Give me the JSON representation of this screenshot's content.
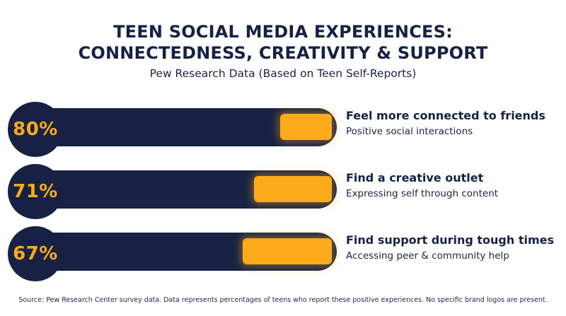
{
  "header": {
    "title_line1": "TEEN SOCIAL MEDIA EXPERIENCES:",
    "title_line2": "CONNECTEDNESS, CREATIVITY & SUPPORT",
    "subtitle": "Pew Research Data (Based on Teen Self-Reports)"
  },
  "colors": {
    "navy": "#162144",
    "accent": "#fbab1a",
    "background": "#ffffff"
  },
  "chart_data": {
    "type": "bar",
    "title": "TEEN SOCIAL MEDIA EXPERIENCES: CONNECTEDNESS, CREATIVITY & SUPPORT",
    "subtitle": "Pew Research Data (Based on Teen Self-Reports)",
    "unit": "%",
    "ylim": [
      0,
      100
    ],
    "categories": [
      "Feel more connected to friends",
      "Find a creative outlet",
      "Find support during tough times"
    ],
    "values": [
      80,
      71,
      67
    ],
    "items": [
      {
        "value": 80,
        "value_label": "80%",
        "label": "Feel more connected to friends",
        "description": "Positive social interactions"
      },
      {
        "value": 71,
        "value_label": "71%",
        "label": "Find a creative outlet",
        "description": "Expressing self through content"
      },
      {
        "value": 67,
        "value_label": "67%",
        "label": "Find support during tough times",
        "description": "Accessing peer & community help"
      }
    ]
  },
  "footer": {
    "source": "Source: Pew Research Center survey data. Data represents percentages of teens who report these positive experiences. No specific brand logos are present."
  }
}
